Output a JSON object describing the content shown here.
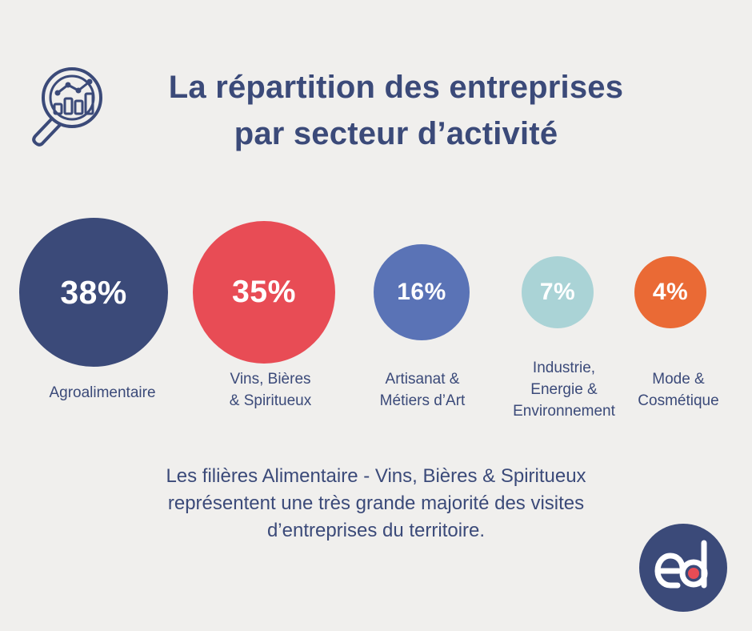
{
  "title": {
    "line1": "La répartition des entreprises",
    "line2": "par secteur d’activité"
  },
  "header_icon": "magnifier-chart-icon",
  "chart_data": {
    "type": "bubble",
    "title": "La répartition des entreprises par secteur d’activité",
    "unit": "%",
    "categories": [
      "Agroalimentaire",
      "Vins, Bières & Spiritueux",
      "Artisanat & Métiers d’Art",
      "Industrie, Energie & Environnement",
      "Mode & Cosmétique"
    ],
    "values": [
      38,
      35,
      16,
      7,
      4
    ],
    "value_labels": [
      "38%",
      "35%",
      "16%",
      "7%",
      "4%"
    ],
    "display_labels": [
      "Agroalimentaire",
      "Vins, Bières\n& Spiritueux",
      "Artisanat &\nMétiers d’Art",
      "Industrie,\nEnergie &\nEnvironnement",
      "Mode &\nCosmétique"
    ],
    "colors": [
      "#3b4a79",
      "#e84c55",
      "#5a73b6",
      "#aad3d6",
      "#ea6a35"
    ]
  },
  "footer": {
    "line1": "Les filières Alimentaire - Vins, Bières & Spiritueux",
    "line2": "représentent une très grande majorité des visites",
    "line3": "d’entreprises du territoire."
  },
  "logo": {
    "name": "ed-logo",
    "colors": {
      "circle": "#3b4a79",
      "letters": "#ffffff",
      "dot": "#e84c55"
    }
  }
}
